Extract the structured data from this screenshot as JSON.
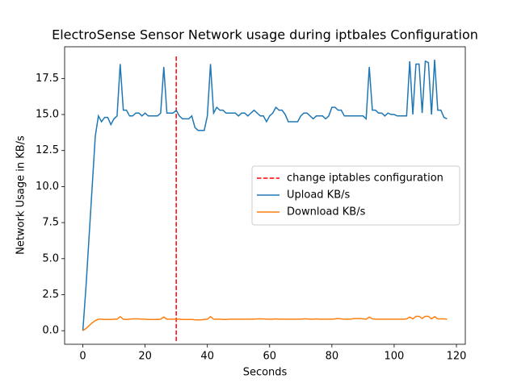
{
  "chart_data": {
    "type": "line",
    "title": "ElectroSense Sensor Network usage during iptbales Configuration",
    "xlabel": "Seconds",
    "ylabel": "Network Usage in KB/s",
    "x": [
      0,
      1,
      2,
      3,
      4,
      5,
      6,
      7,
      8,
      9,
      10,
      11,
      12,
      13,
      14,
      15,
      16,
      17,
      18,
      19,
      20,
      21,
      22,
      23,
      24,
      25,
      26,
      27,
      28,
      29,
      30,
      31,
      32,
      33,
      34,
      35,
      36,
      37,
      38,
      39,
      40,
      41,
      42,
      43,
      44,
      45,
      46,
      47,
      48,
      49,
      50,
      51,
      52,
      53,
      54,
      55,
      56,
      57,
      58,
      59,
      60,
      61,
      62,
      63,
      64,
      65,
      66,
      67,
      68,
      69,
      70,
      71,
      72,
      73,
      74,
      75,
      76,
      77,
      78,
      79,
      80,
      81,
      82,
      83,
      84,
      85,
      86,
      87,
      88,
      89,
      90,
      91,
      92,
      93,
      94,
      95,
      96,
      97,
      98,
      99,
      100,
      101,
      102,
      103,
      104,
      105,
      106,
      107,
      108,
      109,
      110,
      111,
      112,
      113,
      114,
      115,
      116,
      117
    ],
    "series": [
      {
        "name": "Upload KB/s",
        "color": "#1f77b4",
        "values": [
          0,
          3.0,
          6.5,
          10.0,
          13.5,
          14.9,
          14.5,
          14.8,
          14.8,
          14.3,
          14.7,
          14.9,
          18.5,
          15.3,
          15.3,
          14.9,
          14.9,
          15.1,
          15.1,
          14.9,
          15.1,
          14.9,
          14.9,
          14.9,
          14.9,
          15.1,
          18.3,
          15.1,
          15.1,
          15.1,
          15.3,
          14.9,
          14.7,
          14.7,
          14.7,
          14.9,
          14.1,
          13.9,
          13.9,
          13.9,
          14.9,
          18.5,
          15.1,
          15.5,
          15.3,
          15.3,
          15.1,
          15.1,
          15.1,
          15.1,
          14.9,
          15.1,
          15.1,
          14.9,
          15.1,
          15.3,
          15.1,
          14.9,
          14.9,
          14.5,
          14.9,
          15.1,
          15.5,
          15.3,
          15.3,
          15.0,
          14.5,
          14.5,
          14.5,
          14.5,
          14.9,
          15.1,
          15.1,
          14.9,
          14.7,
          14.9,
          14.9,
          14.9,
          14.7,
          14.9,
          15.5,
          15.5,
          15.3,
          15.3,
          14.9,
          14.9,
          14.9,
          14.9,
          14.9,
          14.9,
          14.9,
          14.7,
          18.3,
          15.3,
          15.3,
          15.1,
          15.1,
          14.9,
          15.1,
          15.0,
          15.0,
          14.9,
          14.9,
          14.9,
          14.9,
          18.7,
          15.0,
          18.5,
          18.5,
          15.1,
          18.7,
          18.6,
          15.0,
          18.8,
          15.3,
          15.3,
          14.8,
          14.7
        ]
      },
      {
        "name": "Download KB/s",
        "color": "#ff7f0e",
        "values": [
          0,
          0.15,
          0.35,
          0.55,
          0.7,
          0.8,
          0.8,
          0.78,
          0.78,
          0.78,
          0.8,
          0.8,
          0.98,
          0.8,
          0.78,
          0.8,
          0.82,
          0.82,
          0.82,
          0.8,
          0.8,
          0.78,
          0.78,
          0.78,
          0.78,
          0.8,
          0.95,
          0.8,
          0.8,
          0.8,
          0.8,
          0.8,
          0.78,
          0.78,
          0.78,
          0.78,
          0.76,
          0.75,
          0.75,
          0.78,
          0.8,
          0.98,
          0.8,
          0.8,
          0.8,
          0.78,
          0.78,
          0.8,
          0.8,
          0.8,
          0.8,
          0.8,
          0.8,
          0.8,
          0.8,
          0.8,
          0.82,
          0.82,
          0.82,
          0.8,
          0.8,
          0.8,
          0.82,
          0.8,
          0.8,
          0.8,
          0.8,
          0.8,
          0.8,
          0.8,
          0.8,
          0.82,
          0.82,
          0.8,
          0.8,
          0.82,
          0.8,
          0.8,
          0.8,
          0.8,
          0.8,
          0.82,
          0.84,
          0.82,
          0.8,
          0.8,
          0.8,
          0.84,
          0.84,
          0.84,
          0.82,
          0.8,
          0.95,
          0.82,
          0.8,
          0.8,
          0.8,
          0.8,
          0.8,
          0.8,
          0.8,
          0.8,
          0.8,
          0.8,
          0.82,
          0.95,
          0.82,
          1.0,
          1.0,
          0.85,
          1.0,
          1.0,
          0.82,
          0.98,
          0.82,
          0.82,
          0.82,
          0.8
        ]
      }
    ],
    "vlines": [
      {
        "x": 30,
        "name": "change iptables configuration",
        "color": "#ff0000",
        "style": "dashed"
      }
    ],
    "xlim": [
      -5.85,
      122.85
    ],
    "ylim": [
      -0.94,
      19.7
    ],
    "xticks": [
      0,
      20,
      40,
      60,
      80,
      100,
      120
    ],
    "yticks": [
      {
        "value": 0,
        "label": "0.0"
      },
      2.5,
      {
        "value": 5,
        "label": "5.0"
      },
      7.5,
      {
        "value": 10,
        "label": "10.0"
      },
      12.5,
      {
        "value": 15,
        "label": "15.0"
      },
      17.5
    ],
    "legend": "center right"
  }
}
